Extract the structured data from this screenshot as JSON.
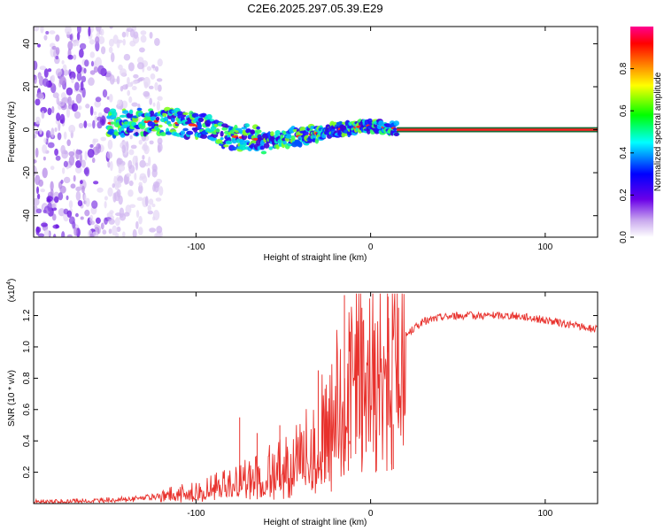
{
  "title": "C2E6.2025.297.05.39.E29",
  "colors": {
    "line": "#e8312c",
    "axis": "#000000",
    "grid": "#555555"
  },
  "chart_data": [
    {
      "type": "heatmap",
      "title": "C2E6.2025.297.05.39.E29",
      "xlabel": "Height of straight line (km)",
      "ylabel": "Frequency (Hz)",
      "xlim": [
        -193,
        130
      ],
      "ylim": [
        -50,
        48
      ],
      "xticks": [
        -100,
        0,
        100
      ],
      "yticks": [
        -40,
        -20,
        0,
        20,
        40
      ],
      "colorbar": {
        "label": "Normalized spectral amplitude",
        "range": [
          0,
          1
        ],
        "ticks": [
          0.0,
          0.2,
          0.4,
          0.6,
          0.8
        ],
        "colormap": [
          "#ffffff",
          "#c9a8ee",
          "#6a00e8",
          "#0000ff",
          "#00ffff",
          "#00ff00",
          "#ffff00",
          "#ff8000",
          "#ff0000",
          "#ff0090"
        ]
      },
      "ridge": {
        "description": "spectral energy centred near 0 Hz",
        "centre_freq_hz": [
          [
            -150,
            3
          ],
          [
            -120,
            4
          ],
          [
            -100,
            2
          ],
          [
            -80,
            -3
          ],
          [
            -60,
            -5
          ],
          [
            -40,
            -3
          ],
          [
            -20,
            0
          ],
          [
            0,
            2
          ],
          [
            20,
            0
          ],
          [
            130,
            0
          ]
        ],
        "noise_region_km": [
          -193,
          -150
        ],
        "steady_tone_from_km": 15
      }
    },
    {
      "type": "line",
      "xlabel": "Height of straight line (km)",
      "ylabel": "SNR (10 * v/v)",
      "multiplier_label": "(x10",
      "multiplier_exp": "4",
      "xlim": [
        -193,
        130
      ],
      "ylim": [
        0,
        1.35
      ],
      "xticks": [
        -100,
        0,
        100
      ],
      "yticks": [
        0.2,
        0.4,
        0.6,
        0.8,
        1.0,
        1.2
      ],
      "series": [
        {
          "name": "SNR",
          "x": [
            -193,
            -160,
            -140,
            -120,
            -100,
            -80,
            -70,
            -60,
            -50,
            -40,
            -30,
            -20,
            -15,
            -10,
            -5,
            0,
            5,
            10,
            15,
            20,
            25,
            30,
            40,
            50,
            60,
            70,
            80,
            90,
            100,
            110,
            120,
            130
          ],
          "values": [
            0.01,
            0.02,
            0.03,
            0.05,
            0.08,
            0.13,
            0.17,
            0.2,
            0.24,
            0.28,
            0.4,
            0.58,
            0.7,
            0.8,
            0.87,
            0.92,
            0.95,
            1.0,
            1.02,
            1.07,
            1.12,
            1.16,
            1.19,
            1.2,
            1.2,
            1.2,
            1.2,
            1.19,
            1.17,
            1.15,
            1.13,
            1.11
          ]
        }
      ],
      "spikes": [
        {
          "x": -75,
          "y": 0.55
        },
        {
          "x": -65,
          "y": 0.45
        },
        {
          "x": -52,
          "y": 0.5
        },
        {
          "x": -30,
          "y": 0.85
        },
        {
          "x": -28,
          "y": 0.15
        },
        {
          "x": -15,
          "y": 1.33
        },
        {
          "x": -12,
          "y": 0.4
        },
        {
          "x": -5,
          "y": 1.25
        },
        {
          "x": 3,
          "y": 0.2
        },
        {
          "x": 10,
          "y": 1.32
        },
        {
          "x": 12,
          "y": 0.25
        },
        {
          "x": 16,
          "y": 1.25
        },
        {
          "x": 13,
          "y": 0.22
        }
      ]
    }
  ]
}
